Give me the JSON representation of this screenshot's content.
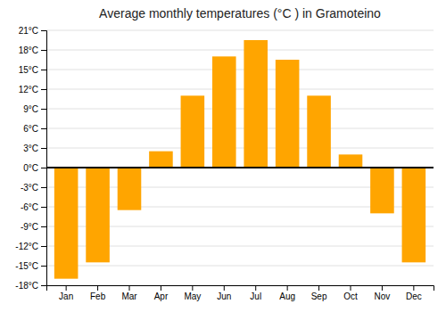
{
  "chart_data": {
    "type": "bar",
    "title": "Average monthly temperatures (°C ) in Gramoteino",
    "categories": [
      "Jan",
      "Feb",
      "Mar",
      "Apr",
      "May",
      "Jun",
      "Jul",
      "Aug",
      "Sep",
      "Oct",
      "Nov",
      "Dec"
    ],
    "values": [
      -17,
      -14.5,
      -6.5,
      2.5,
      11,
      17,
      19.5,
      16.5,
      11,
      2,
      -7,
      -14.5
    ],
    "color": "#FFA500",
    "ylim": [
      -18,
      21
    ],
    "yticks": [
      {
        "value": -18,
        "label": "-18°C"
      },
      {
        "value": -15,
        "label": "-15°C"
      },
      {
        "value": -12,
        "label": "-12°C"
      },
      {
        "value": -9,
        "label": "-9°C"
      },
      {
        "value": -6,
        "label": "-6°C"
      },
      {
        "value": -3,
        "label": "-3°C"
      },
      {
        "value": 0,
        "label": "0°C"
      },
      {
        "value": 3,
        "label": "3°C"
      },
      {
        "value": 6,
        "label": "6°C"
      },
      {
        "value": 9,
        "label": "9°C"
      },
      {
        "value": 12,
        "label": "12°C"
      },
      {
        "value": 15,
        "label": "15°C"
      },
      {
        "value": 18,
        "label": "18°C"
      },
      {
        "value": 21,
        "label": "21°C"
      }
    ],
    "grid": true
  }
}
